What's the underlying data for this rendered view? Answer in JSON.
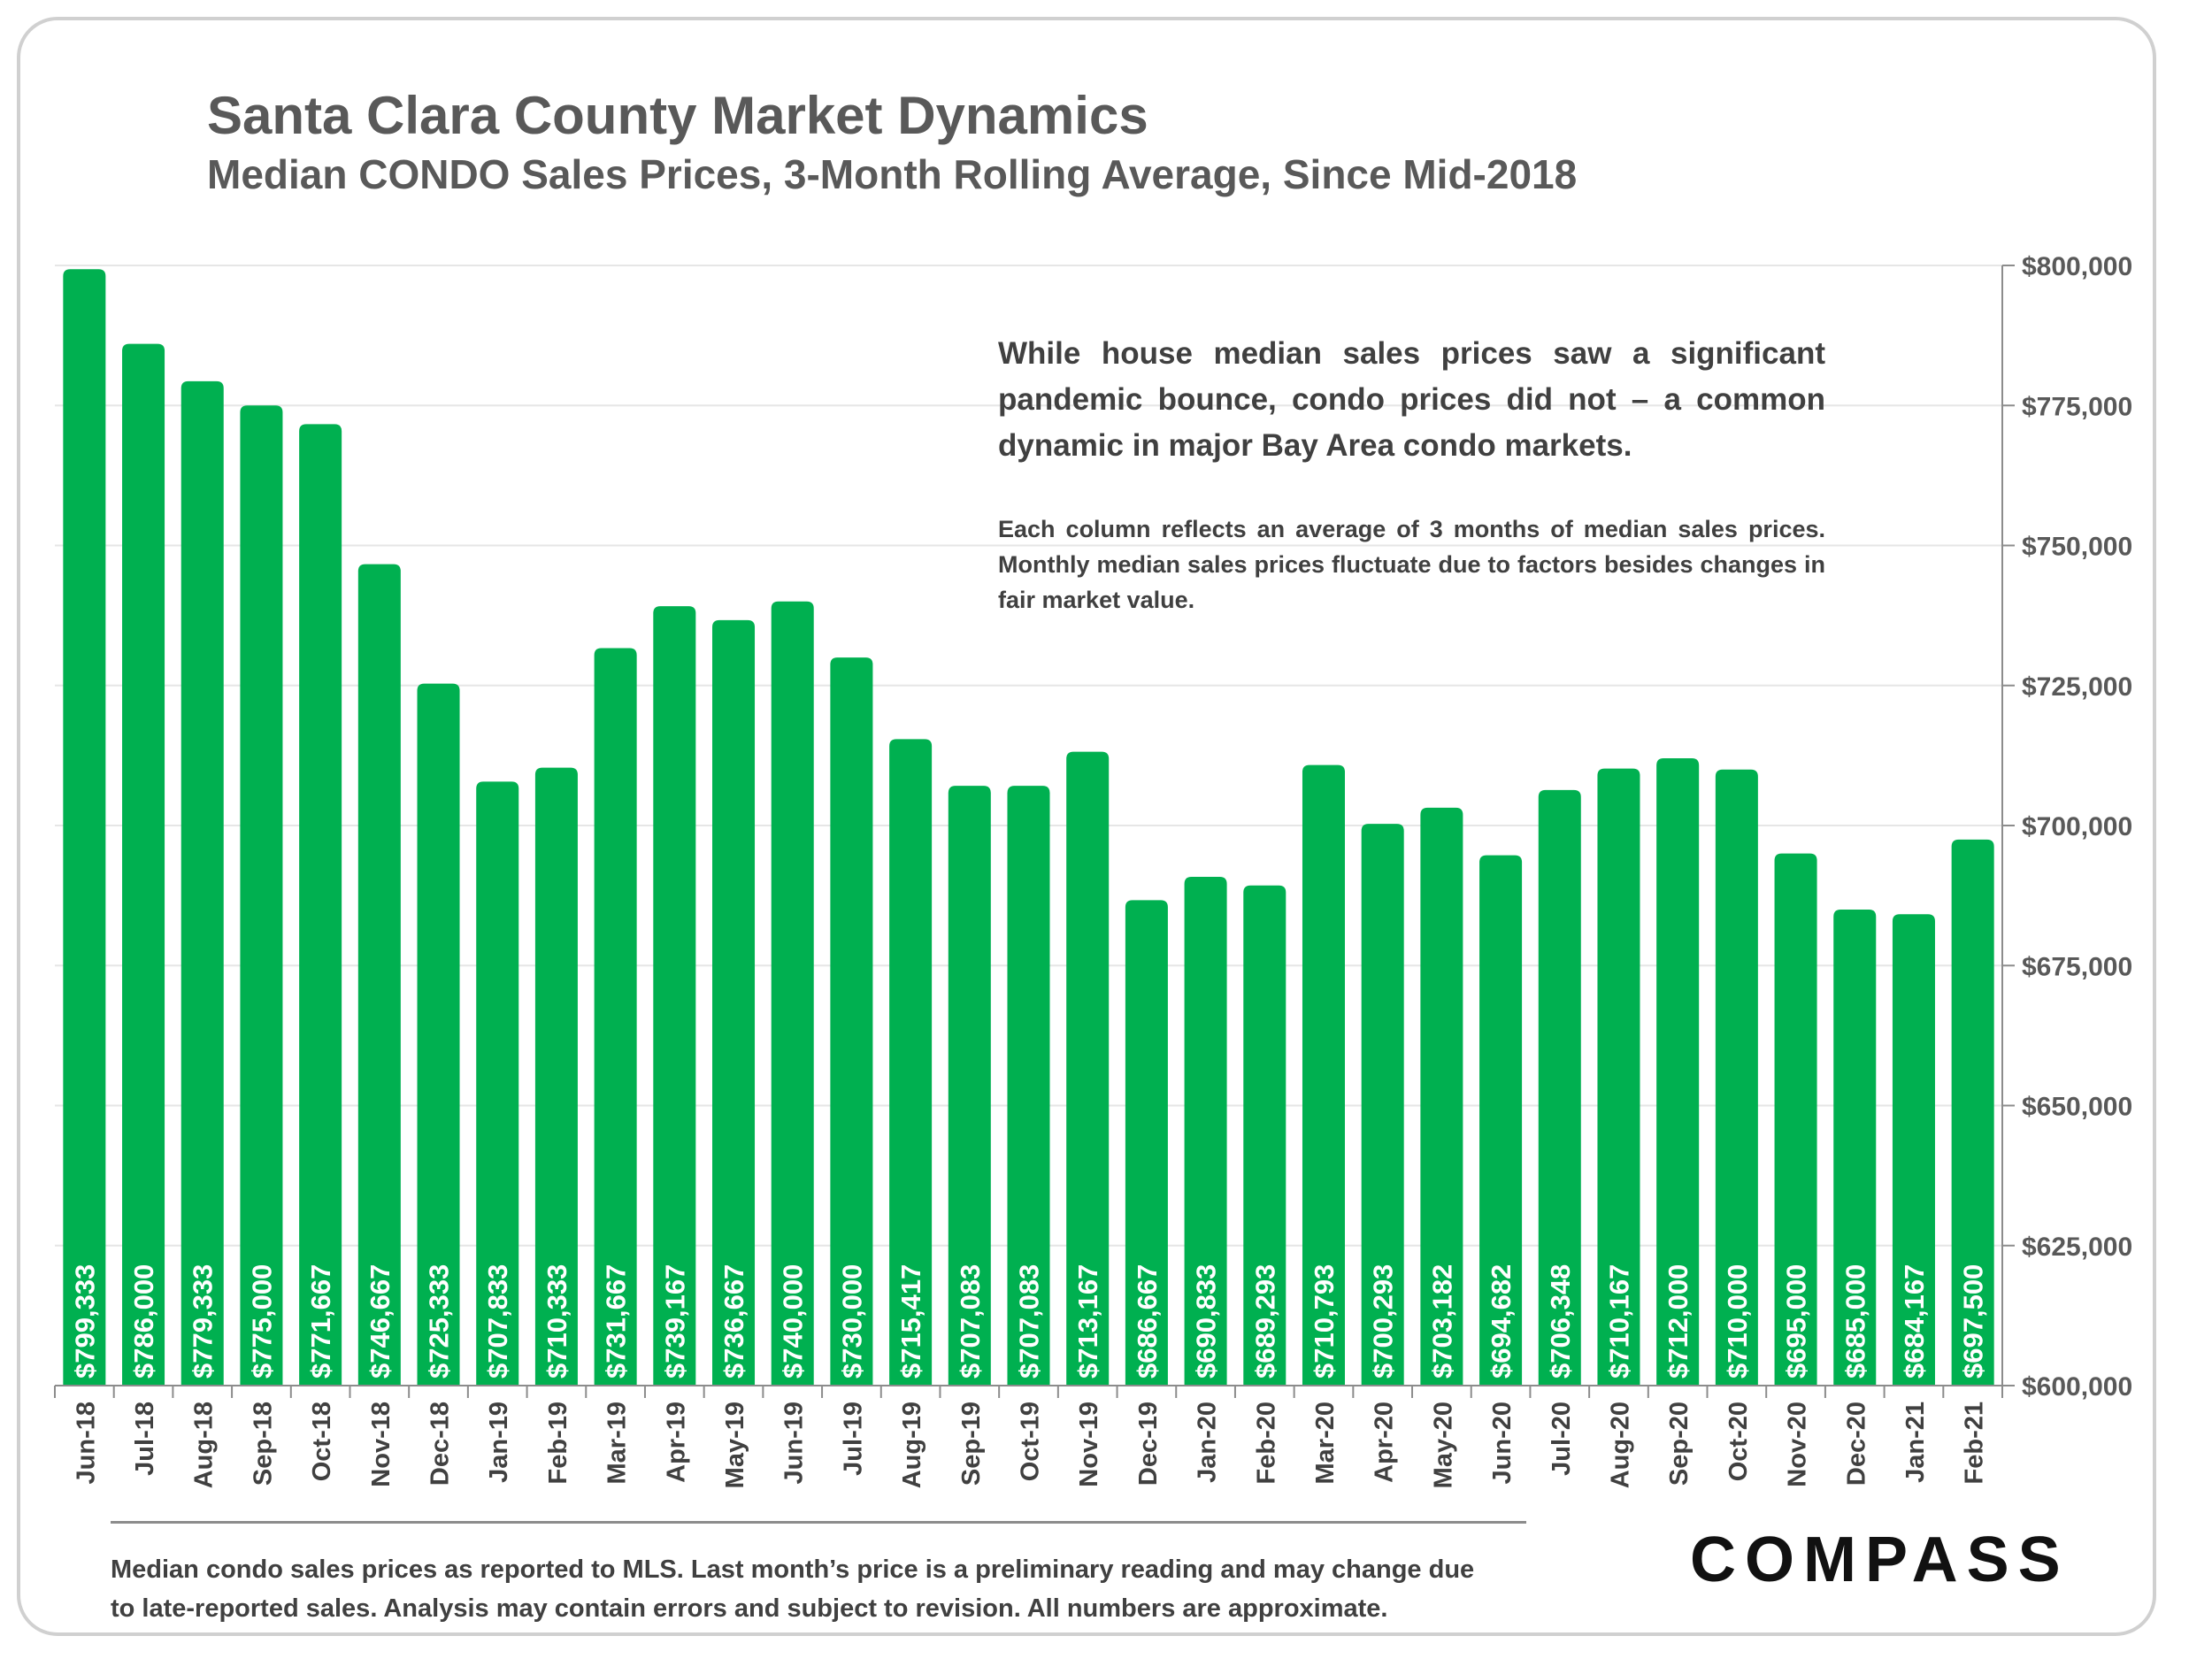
{
  "title": "Santa Clara County Market Dynamics",
  "subtitle": "Median CONDO Sales Prices, 3-Month Rolling Average, Since Mid-2018",
  "annotation": {
    "main": "While house median sales prices saw a significant pandemic bounce, condo prices did not – a common dynamic in major Bay Area condo markets.",
    "note": "Each column reflects an average of 3 months of median sales prices. Monthly median sales prices fluctuate due to factors besides changes in fair market value."
  },
  "footnote": {
    "line1": "Median condo sales prices as reported to MLS. Last month’s price is a preliminary reading and may change due",
    "line2": "to late-reported sales. Analysis may contain errors and subject to revision. All numbers are approximate."
  },
  "logo": "COMPASS",
  "colors": {
    "bar": "#00B050",
    "bar_label": "#ffffff",
    "text": "#595959",
    "grid": "#e6e6e6"
  },
  "chart_data": {
    "type": "bar",
    "title": "Santa Clara County Market Dynamics",
    "subtitle": "Median CONDO Sales Prices, 3-Month Rolling Average, Since Mid-2018",
    "categories": [
      "Jun-18",
      "Jul-18",
      "Aug-18",
      "Sep-18",
      "Oct-18",
      "Nov-18",
      "Dec-18",
      "Jan-19",
      "Feb-19",
      "Mar-19",
      "Apr-19",
      "May-19",
      "Jun-19",
      "Jul-19",
      "Aug-19",
      "Sep-19",
      "Oct-19",
      "Nov-19",
      "Dec-19",
      "Jan-20",
      "Feb-20",
      "Mar-20",
      "Apr-20",
      "May-20",
      "Jun-20",
      "Jul-20",
      "Aug-20",
      "Sep-20",
      "Oct-20",
      "Nov-20",
      "Dec-20",
      "Jan-21",
      "Feb-21"
    ],
    "values": [
      799333,
      786000,
      779333,
      775000,
      771667,
      746667,
      725333,
      707833,
      710333,
      731667,
      739167,
      736667,
      740000,
      730000,
      715417,
      707083,
      707083,
      713167,
      686667,
      690833,
      689293,
      710793,
      700293,
      703182,
      694682,
      706348,
      710167,
      712000,
      710000,
      695000,
      685000,
      684167,
      697500
    ],
    "value_labels": [
      "$799,333",
      "$786,000",
      "$779,333",
      "$775,000",
      "$771,667",
      "$746,667",
      "$725,333",
      "$707,833",
      "$710,333",
      "$731,667",
      "$739,167",
      "$736,667",
      "$740,000",
      "$730,000",
      "$715,417",
      "$707,083",
      "$707,083",
      "$713,167",
      "$686,667",
      "$690,833",
      "$689,293",
      "$710,793",
      "$700,293",
      "$703,182",
      "$694,682",
      "$706,348",
      "$710,167",
      "$712,000",
      "$710,000",
      "$695,000",
      "$685,000",
      "$684,167",
      "$697,500"
    ],
    "ylim": [
      600000,
      800000
    ],
    "y_ticks": [
      600000,
      625000,
      650000,
      675000,
      700000,
      725000,
      750000,
      775000,
      800000
    ],
    "y_tick_labels": [
      "$600,000",
      "$625,000",
      "$650,000",
      "$675,000",
      "$700,000",
      "$725,000",
      "$750,000",
      "$775,000",
      "$800,000"
    ],
    "y_axis_side": "right",
    "grid": true,
    "xlabel": "",
    "ylabel": ""
  }
}
